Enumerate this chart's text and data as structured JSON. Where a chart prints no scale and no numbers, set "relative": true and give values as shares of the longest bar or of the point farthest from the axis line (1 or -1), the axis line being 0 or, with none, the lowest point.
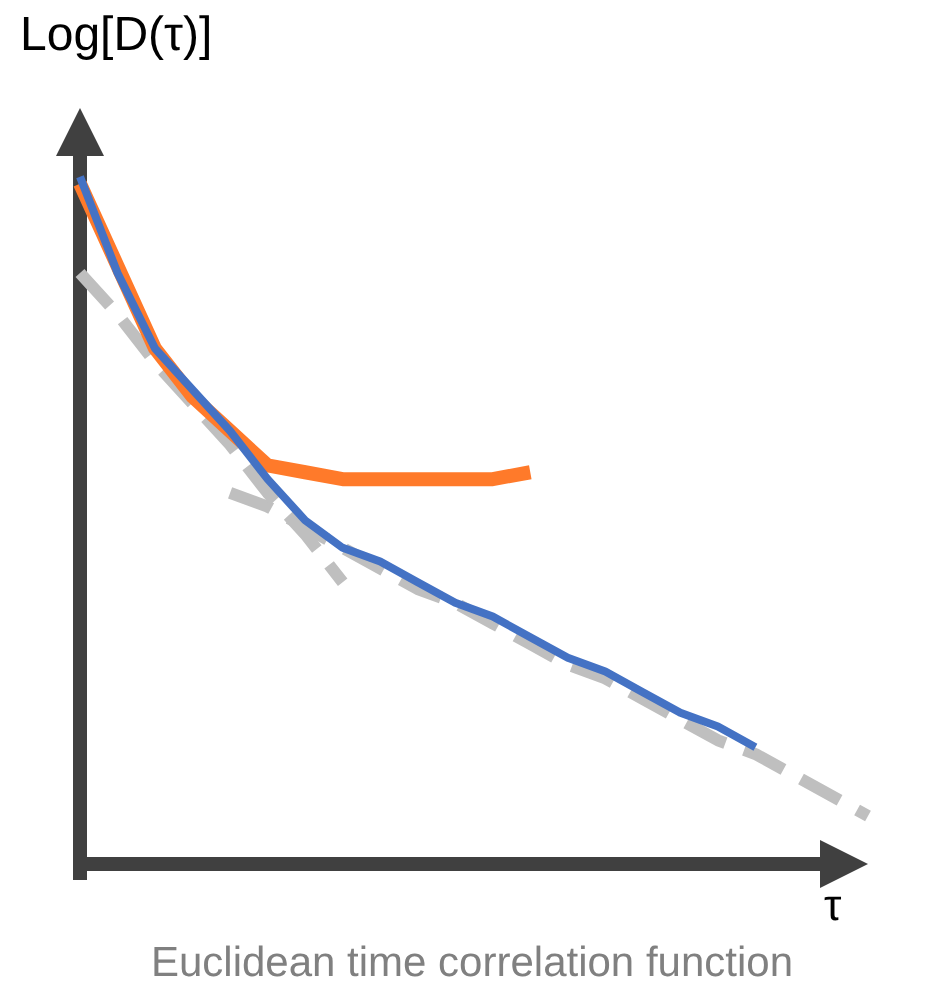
{
  "chart_data": {
    "type": "line",
    "relative": true,
    "ylabel": "Log[D(τ)]",
    "xlabel": "τ",
    "annotations": [
      "Euclidean time correlation function"
    ],
    "marker": "none",
    "categories": [
      null,
      null,
      null,
      null,
      null,
      null,
      null,
      null,
      null,
      null,
      null,
      null,
      null,
      null,
      null,
      null,
      null,
      null,
      null,
      null,
      null,
      null
    ],
    "series": [
      {
        "color": "#4472c4",
        "line_style": "solid",
        "values": [
          1,
          0.86,
          0.75,
          0.69,
          0.63,
          0.56,
          0.5,
          0.46,
          0.44,
          0.41,
          0.38,
          0.36,
          0.33,
          0.3,
          0.28,
          0.25,
          0.22,
          0.2,
          0.17,
          null,
          null,
          null
        ]
      },
      {
        "color": "#ff7a2a",
        "line_style": "solid",
        "values": [
          0.99,
          0.87,
          0.75,
          0.68,
          0.63,
          0.58,
          0.57,
          0.56,
          0.56,
          0.56,
          0.56,
          0.56,
          0.57,
          null,
          null,
          null,
          null,
          null,
          null,
          null,
          null,
          null
        ]
      },
      {
        "color": "#bfbfbf",
        "line_style": "dashed",
        "values": [
          0.86,
          0.8,
          0.73,
          0.67,
          0.61,
          0.54,
          0.48,
          0.41,
          null,
          null,
          null,
          null,
          null,
          null,
          null,
          null,
          null,
          null,
          null,
          null,
          null,
          null
        ]
      },
      {
        "color": "#bfbfbf",
        "line_style": "dashed",
        "values": [
          null,
          null,
          null,
          null,
          0.54,
          0.52,
          0.49,
          0.46,
          0.43,
          0.4,
          0.38,
          0.35,
          0.32,
          0.29,
          0.27,
          0.24,
          0.21,
          0.18,
          0.16,
          0.13,
          0.1,
          0.07
        ]
      }
    ]
  }
}
